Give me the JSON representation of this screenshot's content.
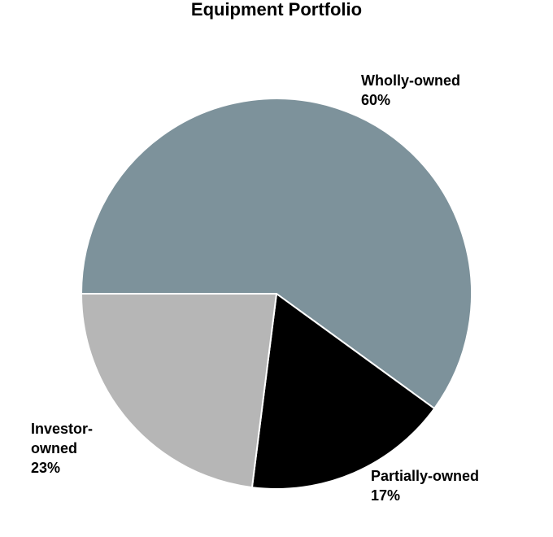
{
  "chart_data": {
    "type": "pie",
    "title": "Equipment Portfolio",
    "slices": [
      {
        "label": "Wholly-owned",
        "label_lines": [
          "Wholly-owned"
        ],
        "value": 60,
        "value_label": "60%",
        "color": "#7d929b"
      },
      {
        "label": "Partially-owned",
        "label_lines": [
          "Partially-owned"
        ],
        "value": 17,
        "value_label": "17%",
        "color": "#000000"
      },
      {
        "label": "Investor-owned",
        "label_lines": [
          "Investor-",
          "owned"
        ],
        "value": 23,
        "value_label": "23%",
        "color": "#b6b6b6"
      }
    ],
    "start_angle": "9 o'clock",
    "direction": "clockwise",
    "slice_border_color": "#ffffff"
  }
}
